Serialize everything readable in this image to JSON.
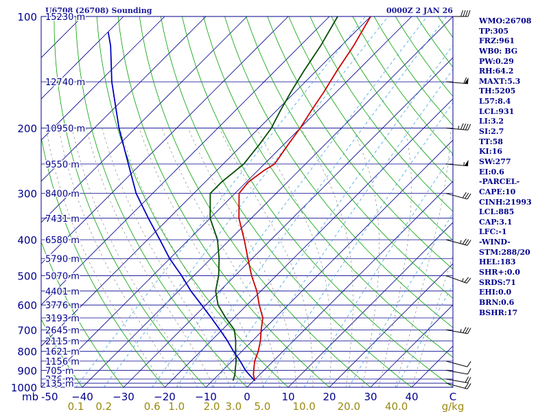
{
  "header": {
    "station": "U6708 (26708) Sounding",
    "time": "0000Z  2 JAN 26"
  },
  "indices": [
    "WMO:26708",
    "TP:305",
    "FRZ:961",
    "WB0: BG",
    "PW:0.29",
    "RH:64.2",
    "MAXT:5.3",
    "TH:5205",
    "L57:8.4",
    "LCL:931",
    "LI:3.2",
    "SI:2.7",
    "TT:58",
    "KI:16",
    "SW:277",
    "EI:0.6",
    "-PARCEL-",
    "CAPE:10",
    "CINH:21993",
    "LCL:885",
    "CAP:3.1",
    "LFC:-1",
    "-WIND-",
    "STM:288/20",
    "HEL:183",
    "SHR+:0.0",
    "SRDS:71",
    "EHI:0.0",
    "BRN:0.6",
    "BSHR:17"
  ],
  "colors": {
    "frame": "#00008b",
    "isobar": "#00008b",
    "isotherm": "#00008b",
    "dry_adiabat": "#00a000",
    "moist_adiabat": "#8a8a8a",
    "mixing_ratio": "#40a0e0",
    "temperature": "#cc0000",
    "dewpoint": "#004d00",
    "parcel": "#0000c0",
    "axis_text": "#00008b",
    "mixing_text": "#9a8a10"
  },
  "chart_data": {
    "type": "skew-t",
    "xlim_celsius": [
      -50,
      50
    ],
    "ylim_hpa": [
      1000,
      100
    ],
    "axis_unit_label": "mb",
    "pressure_ticks": [
      {
        "p": 100,
        "label": "100"
      },
      {
        "p": 200,
        "label": "200"
      },
      {
        "p": 300,
        "label": "300"
      },
      {
        "p": 400,
        "label": "400"
      },
      {
        "p": 500,
        "label": "500"
      },
      {
        "p": 600,
        "label": "600"
      },
      {
        "p": 700,
        "label": "700"
      },
      {
        "p": 800,
        "label": "800"
      },
      {
        "p": 900,
        "label": "900"
      },
      {
        "p": 1000,
        "label": "1000"
      }
    ],
    "temperature_ticks": [
      {
        "t": -50,
        "label": "-50"
      },
      {
        "t": -40,
        "label": "−40"
      },
      {
        "t": -30,
        "label": "−30"
      },
      {
        "t": -20,
        "label": "−20"
      },
      {
        "t": -10,
        "label": "−10"
      },
      {
        "t": 0,
        "label": "0"
      },
      {
        "t": 10,
        "label": "10"
      },
      {
        "t": 20,
        "label": "20"
      },
      {
        "t": 30,
        "label": "30"
      },
      {
        "t": 40,
        "label": "40"
      },
      {
        "t": 50,
        "label": "C"
      }
    ],
    "height_levels": [
      {
        "p": 100,
        "label": "15230 m"
      },
      {
        "p": 150,
        "label": "12740 m"
      },
      {
        "p": 200,
        "label": "10950 m"
      },
      {
        "p": 250,
        "label": "9550 m"
      },
      {
        "p": 300,
        "label": "8400 m"
      },
      {
        "p": 350,
        "label": "7431 m"
      },
      {
        "p": 400,
        "label": "6580 m"
      },
      {
        "p": 450,
        "label": "5790 m"
      },
      {
        "p": 500,
        "label": "5070 m"
      },
      {
        "p": 550,
        "label": "4401 m"
      },
      {
        "p": 600,
        "label": "3776 m"
      },
      {
        "p": 650,
        "label": "3193 m"
      },
      {
        "p": 700,
        "label": "2645 m"
      },
      {
        "p": 750,
        "label": "2115 m"
      },
      {
        "p": 800,
        "label": "1621 m"
      },
      {
        "p": 850,
        "label": "1156 m"
      },
      {
        "p": 900,
        "label": "705 m"
      },
      {
        "p": 950,
        "label": "276 m"
      },
      {
        "p": 975,
        "label": "135 m"
      }
    ],
    "mixing_ratio_labels": [
      {
        "w": 0.1,
        "label": "0.1"
      },
      {
        "w": 0.2,
        "label": "0.2"
      },
      {
        "w": 0.6,
        "label": "0.6"
      },
      {
        "w": 1.0,
        "label": "1.0"
      },
      {
        "w": 2.0,
        "label": "2.0"
      },
      {
        "w": 3.0,
        "label": "3.0"
      },
      {
        "w": 5.0,
        "label": "5.0"
      },
      {
        "w": 10.0,
        "label": "10.0"
      },
      {
        "w": 20.0,
        "label": "20.0"
      },
      {
        "w": 40.0,
        "label": "40.0"
      }
    ],
    "mixing_ratio_unit": "g/kg",
    "series": [
      {
        "name": "temperature",
        "points": [
          [
            960,
            0.3
          ],
          [
            925,
            -1.5
          ],
          [
            900,
            -2.5
          ],
          [
            850,
            -4.5
          ],
          [
            800,
            -6
          ],
          [
            750,
            -8
          ],
          [
            700,
            -10.5
          ],
          [
            650,
            -13
          ],
          [
            600,
            -17
          ],
          [
            550,
            -21
          ],
          [
            500,
            -26
          ],
          [
            450,
            -31
          ],
          [
            400,
            -36.5
          ],
          [
            350,
            -43
          ],
          [
            300,
            -49
          ],
          [
            280,
            -49.5
          ],
          [
            260,
            -48.5
          ],
          [
            250,
            -47.5
          ],
          [
            220,
            -49
          ],
          [
            200,
            -50
          ],
          [
            180,
            -51.5
          ],
          [
            160,
            -53
          ],
          [
            140,
            -55
          ],
          [
            120,
            -57
          ],
          [
            100,
            -60
          ]
        ]
      },
      {
        "name": "dewpoint",
        "points": [
          [
            960,
            -5
          ],
          [
            925,
            -6
          ],
          [
            900,
            -7
          ],
          [
            850,
            -9
          ],
          [
            800,
            -11.5
          ],
          [
            750,
            -14
          ],
          [
            700,
            -17
          ],
          [
            650,
            -22
          ],
          [
            600,
            -27
          ],
          [
            550,
            -31
          ],
          [
            500,
            -34
          ],
          [
            450,
            -38
          ],
          [
            400,
            -43
          ],
          [
            350,
            -50
          ],
          [
            300,
            -56
          ],
          [
            280,
            -56
          ],
          [
            250,
            -55
          ],
          [
            220,
            -56
          ],
          [
            200,
            -57
          ],
          [
            180,
            -59
          ],
          [
            160,
            -61
          ],
          [
            140,
            -63
          ],
          [
            120,
            -65
          ],
          [
            100,
            -68
          ]
        ]
      },
      {
        "name": "parcel",
        "points": [
          [
            960,
            0.3
          ],
          [
            925,
            -2.5
          ],
          [
            900,
            -4.5
          ],
          [
            850,
            -8
          ],
          [
            800,
            -12
          ],
          [
            750,
            -16
          ],
          [
            700,
            -20.5
          ],
          [
            650,
            -25.5
          ],
          [
            600,
            -31
          ],
          [
            550,
            -37
          ],
          [
            500,
            -43
          ],
          [
            450,
            -50
          ],
          [
            400,
            -57
          ],
          [
            350,
            -65
          ],
          [
            300,
            -74
          ],
          [
            250,
            -83
          ],
          [
            200,
            -94
          ],
          [
            150,
            -107
          ],
          [
            120,
            -116
          ],
          [
            110,
            -120
          ]
        ]
      }
    ],
    "wind_barbs": [
      {
        "p": 975,
        "dir": 285,
        "spd": 20
      },
      {
        "p": 950,
        "dir": 280,
        "spd": 20
      },
      {
        "p": 900,
        "dir": 280,
        "spd": 10
      },
      {
        "p": 850,
        "dir": 285,
        "spd": 10
      },
      {
        "p": 700,
        "dir": 280,
        "spd": 35
      },
      {
        "p": 500,
        "dir": 290,
        "spd": 25
      },
      {
        "p": 400,
        "dir": 285,
        "spd": 35
      },
      {
        "p": 300,
        "dir": 285,
        "spd": 30
      },
      {
        "p": 250,
        "dir": 275,
        "spd": 55
      },
      {
        "p": 200,
        "dir": 275,
        "spd": 45
      },
      {
        "p": 150,
        "dir": 275,
        "spd": 60
      },
      {
        "p": 100,
        "dir": 270,
        "spd": 40
      }
    ]
  }
}
